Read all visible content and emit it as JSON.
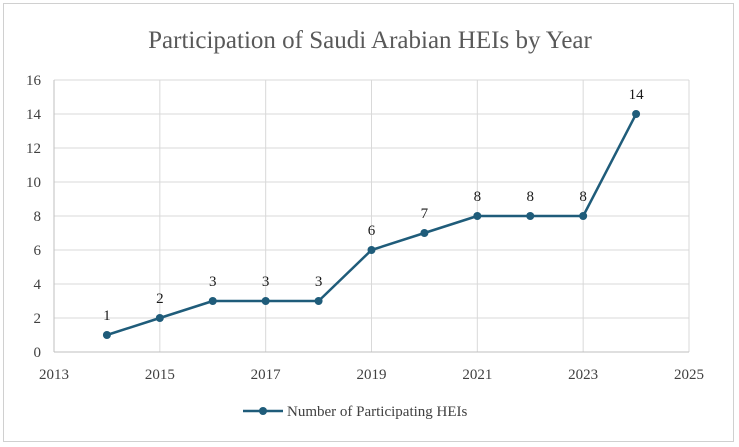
{
  "chart_data": {
    "type": "line",
    "title": "Participation of Saudi Arabian HEIs by Year",
    "xlabel": "",
    "ylabel": "",
    "xlim": [
      2013,
      2025
    ],
    "ylim": [
      0,
      16
    ],
    "x_ticks": [
      2013,
      2015,
      2017,
      2019,
      2021,
      2023,
      2025
    ],
    "y_ticks": [
      0,
      2,
      4,
      6,
      8,
      10,
      12,
      14,
      16
    ],
    "grid": true,
    "legend_position": "bottom",
    "series": [
      {
        "name": "Number of Participating HEIs",
        "color": "#1f5c7a",
        "x": [
          2014,
          2015,
          2016,
          2017,
          2018,
          2019,
          2020,
          2021,
          2022,
          2023,
          2024
        ],
        "y": [
          1,
          2,
          3,
          3,
          3,
          6,
          7,
          8,
          8,
          8,
          14
        ],
        "data_labels": [
          "1",
          "2",
          "3",
          "3",
          "3",
          "6",
          "7",
          "8",
          "8",
          "8",
          "14"
        ]
      }
    ]
  }
}
